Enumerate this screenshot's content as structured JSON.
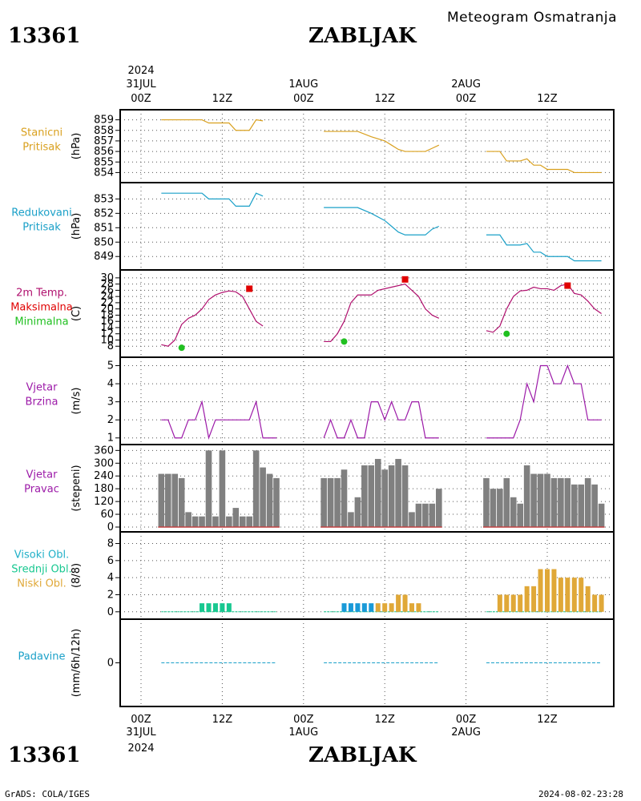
{
  "station_id": "13361",
  "station_name": "ZABLJAK",
  "meteogram_title": "Meteogram Osmatranja",
  "year": "2024",
  "footer_left": "GrADS: COLA/IGES",
  "footer_right": "2024-08-02-23:28",
  "time_axis": {
    "days": [
      "31JUL",
      "1AUG",
      "2AUG"
    ],
    "hour_labels": [
      "00Z",
      "12Z",
      "00Z",
      "12Z",
      "00Z",
      "12Z"
    ]
  },
  "colors": {
    "pressure": "#d9a01e",
    "reduced": "#1aa0c8",
    "temp": "#b0106e",
    "tmax": "#e00000",
    "tmin": "#20c020",
    "wind": "#9c1aa8",
    "dir_bar": "#808080",
    "cloud_high": "#20b0c8",
    "cloud_mid": "#18c890",
    "cloud_low": "#e0a838",
    "precip": "#1aa0c8"
  },
  "chart_data": [
    {
      "type": "line",
      "key": "station_pressure",
      "labels": [
        "Stanicni",
        "Pritisak"
      ],
      "ylabel": "(hPa)",
      "ylim": [
        853.5,
        859.5
      ],
      "yticks": [
        854,
        855,
        856,
        857,
        858,
        859
      ],
      "series": [
        {
          "values": [
            [
              3,
              859
            ],
            [
              9,
              859
            ],
            [
              10,
              858.7
            ],
            [
              13,
              858.7
            ],
            [
              14,
              858
            ],
            [
              16,
              858
            ],
            [
              17,
              859
            ],
            [
              18,
              858.9
            ]
          ]
        },
        {
          "values": [
            [
              27,
              857.9
            ],
            [
              32,
              857.9
            ],
            [
              34,
              857.4
            ],
            [
              36,
              857
            ],
            [
              37,
              856.6
            ],
            [
              38,
              856.2
            ],
            [
              39,
              856
            ],
            [
              42,
              856
            ],
            [
              43,
              856.3
            ],
            [
              44,
              856.6
            ]
          ]
        },
        {
          "values": [
            [
              51,
              856
            ],
            [
              53,
              856
            ],
            [
              54,
              855.1
            ],
            [
              56,
              855.1
            ],
            [
              57,
              855.3
            ],
            [
              58,
              854.7
            ],
            [
              59,
              854.7
            ],
            [
              60,
              854.3
            ],
            [
              63,
              854.3
            ],
            [
              64,
              854
            ],
            [
              68,
              854
            ]
          ]
        }
      ]
    },
    {
      "type": "line",
      "key": "reduced_pressure",
      "labels": [
        "Redukovani",
        "Pritisak"
      ],
      "ylabel": "(hPa)",
      "ylim": [
        848.4,
        853.8
      ],
      "yticks": [
        849,
        850,
        851,
        852,
        853
      ],
      "series": [
        {
          "values": [
            [
              3,
              853.4
            ],
            [
              9,
              853.4
            ],
            [
              10,
              853
            ],
            [
              13,
              853
            ],
            [
              14,
              852.5
            ],
            [
              16,
              852.5
            ],
            [
              17,
              853.4
            ],
            [
              18,
              853.2
            ]
          ]
        },
        {
          "values": [
            [
              27,
              852.4
            ],
            [
              32,
              852.4
            ],
            [
              34,
              852
            ],
            [
              36,
              851.5
            ],
            [
              37,
              851.1
            ],
            [
              38,
              850.7
            ],
            [
              39,
              850.5
            ],
            [
              42,
              850.5
            ],
            [
              43,
              850.9
            ],
            [
              44,
              851.1
            ]
          ]
        },
        {
          "values": [
            [
              51,
              850.5
            ],
            [
              53,
              850.5
            ],
            [
              54,
              849.8
            ],
            [
              56,
              849.8
            ],
            [
              57,
              849.9
            ],
            [
              58,
              849.3
            ],
            [
              59,
              849.3
            ],
            [
              60,
              849
            ],
            [
              63,
              849
            ],
            [
              64,
              848.7
            ],
            [
              68,
              848.7
            ]
          ]
        }
      ]
    },
    {
      "type": "line",
      "key": "temperature",
      "labels": [
        "2m Temp.",
        "Maksimalna",
        "Minimalna"
      ],
      "ylabel": "(C)",
      "ylim": [
        6,
        31
      ],
      "yticks": [
        8,
        10,
        12,
        14,
        16,
        18,
        20,
        22,
        24,
        26,
        28,
        30
      ],
      "series": [
        {
          "name": "2m Temp.",
          "values": [
            [
              3,
              8.5
            ],
            [
              4,
              8
            ],
            [
              5,
              10
            ],
            [
              6,
              15
            ],
            [
              7,
              17
            ],
            [
              8,
              18
            ],
            [
              9,
              20
            ],
            [
              10,
              23
            ],
            [
              11,
              24.5
            ],
            [
              12,
              25.3
            ],
            [
              13,
              25.8
            ],
            [
              14,
              25.5
            ],
            [
              15,
              24
            ],
            [
              16,
              20
            ],
            [
              17,
              16
            ],
            [
              18,
              14.5
            ]
          ]
        },
        {
          "name": "2m Temp.",
          "values": [
            [
              27,
              9.5
            ],
            [
              28,
              9.5
            ],
            [
              29,
              12
            ],
            [
              30,
              16
            ],
            [
              31,
              22
            ],
            [
              32,
              24.5
            ],
            [
              34,
              24.5
            ],
            [
              35,
              26
            ],
            [
              37,
              27
            ],
            [
              39,
              28
            ],
            [
              40,
              26
            ],
            [
              41,
              24
            ],
            [
              42,
              20
            ],
            [
              43,
              18
            ],
            [
              44,
              17
            ]
          ]
        },
        {
          "name": "2m Temp.",
          "values": [
            [
              51,
              13
            ],
            [
              52,
              12.5
            ],
            [
              53,
              14.5
            ],
            [
              54,
              20
            ],
            [
              55,
              24
            ],
            [
              56,
              25.8
            ],
            [
              57,
              26
            ],
            [
              58,
              27
            ],
            [
              59,
              26.5
            ],
            [
              60,
              26.5
            ],
            [
              61,
              26
            ],
            [
              62,
              27.5
            ],
            [
              63,
              28
            ],
            [
              64,
              25
            ],
            [
              65,
              24.5
            ],
            [
              66,
              22.5
            ],
            [
              67,
              20
            ],
            [
              68,
              18.5
            ]
          ]
        }
      ],
      "max_points": [
        [
          16,
          26.5
        ],
        [
          39,
          29.5
        ],
        [
          63,
          27.5
        ]
      ],
      "min_points": [
        [
          6,
          7.5
        ],
        [
          30,
          9.5
        ],
        [
          54,
          12
        ]
      ]
    },
    {
      "type": "line",
      "key": "wind_speed",
      "labels": [
        "Vjetar",
        "Brzina"
      ],
      "ylabel": "(m/s)",
      "ylim": [
        0.9,
        5.2
      ],
      "yticks": [
        1,
        2,
        3,
        4,
        5
      ],
      "series": [
        {
          "values": [
            [
              3,
              2
            ],
            [
              4,
              2
            ],
            [
              5,
              1
            ],
            [
              6,
              1
            ],
            [
              7,
              2
            ],
            [
              8,
              2
            ],
            [
              9,
              3
            ],
            [
              10,
              1
            ],
            [
              11,
              2
            ],
            [
              16,
              2
            ],
            [
              17,
              3
            ],
            [
              18,
              1
            ],
            [
              20,
              1
            ]
          ]
        },
        {
          "values": [
            [
              27,
              1
            ],
            [
              28,
              2
            ],
            [
              29,
              1
            ],
            [
              30,
              1
            ],
            [
              31,
              2
            ],
            [
              32,
              1
            ],
            [
              33,
              1
            ],
            [
              34,
              3
            ],
            [
              35,
              3
            ],
            [
              36,
              2
            ],
            [
              37,
              3
            ],
            [
              38,
              2
            ],
            [
              39,
              2
            ],
            [
              40,
              3
            ],
            [
              41,
              3
            ],
            [
              42,
              1
            ],
            [
              44,
              1
            ]
          ]
        },
        {
          "values": [
            [
              51,
              1
            ],
            [
              55,
              1
            ],
            [
              56,
              2
            ],
            [
              57,
              4
            ],
            [
              58,
              3
            ],
            [
              59,
              5
            ],
            [
              60,
              5
            ],
            [
              61,
              4
            ],
            [
              62,
              4
            ],
            [
              63,
              5
            ],
            [
              64,
              4
            ],
            [
              65,
              4
            ],
            [
              66,
              2
            ],
            [
              68,
              2
            ]
          ]
        }
      ]
    },
    {
      "type": "bar",
      "key": "wind_direction",
      "labels": [
        "Vjetar",
        "Pravac"
      ],
      "ylabel": "(stepeni)",
      "ylim": [
        0,
        365
      ],
      "yticks": [
        0,
        60,
        120,
        180,
        240,
        300,
        360
      ],
      "values": [
        [
          3,
          250
        ],
        [
          4,
          250
        ],
        [
          5,
          250
        ],
        [
          6,
          230
        ],
        [
          7,
          70
        ],
        [
          8,
          50
        ],
        [
          9,
          50
        ],
        [
          10,
          360
        ],
        [
          11,
          50
        ],
        [
          12,
          360
        ],
        [
          13,
          50
        ],
        [
          14,
          90
        ],
        [
          15,
          50
        ],
        [
          16,
          50
        ],
        [
          17,
          360
        ],
        [
          18,
          280
        ],
        [
          19,
          250
        ],
        [
          20,
          230
        ],
        [
          27,
          230
        ],
        [
          28,
          230
        ],
        [
          29,
          230
        ],
        [
          30,
          270
        ],
        [
          31,
          70
        ],
        [
          32,
          140
        ],
        [
          33,
          290
        ],
        [
          34,
          290
        ],
        [
          35,
          320
        ],
        [
          36,
          270
        ],
        [
          37,
          290
        ],
        [
          38,
          320
        ],
        [
          39,
          290
        ],
        [
          40,
          70
        ],
        [
          41,
          110
        ],
        [
          42,
          110
        ],
        [
          43,
          110
        ],
        [
          44,
          180
        ],
        [
          51,
          230
        ],
        [
          52,
          180
        ],
        [
          53,
          180
        ],
        [
          54,
          230
        ],
        [
          55,
          140
        ],
        [
          56,
          110
        ],
        [
          57,
          290
        ],
        [
          58,
          250
        ],
        [
          59,
          250
        ],
        [
          60,
          250
        ],
        [
          61,
          230
        ],
        [
          62,
          230
        ],
        [
          63,
          230
        ],
        [
          64,
          200
        ],
        [
          65,
          200
        ],
        [
          66,
          230
        ],
        [
          67,
          200
        ],
        [
          68,
          110
        ]
      ]
    },
    {
      "type": "bar",
      "key": "clouds",
      "labels": [
        "Visoki Obl.",
        "Srednji Obl.",
        "Niski Obl."
      ],
      "ylabel": "(8/8)",
      "ylim": [
        -0.3,
        8.8
      ],
      "yticks": [
        0,
        2,
        4,
        6,
        8
      ],
      "high": [
        [
          30,
          1
        ],
        [
          31,
          1
        ],
        [
          32,
          1
        ],
        [
          33,
          1
        ],
        [
          34,
          1
        ]
      ],
      "mid": [
        [
          9,
          1
        ],
        [
          10,
          1
        ],
        [
          11,
          1
        ],
        [
          12,
          1
        ],
        [
          13,
          1
        ]
      ],
      "low": [
        [
          35,
          1
        ],
        [
          36,
          1
        ],
        [
          37,
          1
        ],
        [
          38,
          2
        ],
        [
          39,
          2
        ],
        [
          40,
          1
        ],
        [
          41,
          1
        ],
        [
          53,
          2
        ],
        [
          54,
          2
        ],
        [
          55,
          2
        ],
        [
          56,
          2
        ],
        [
          57,
          3
        ],
        [
          58,
          3
        ],
        [
          59,
          5
        ],
        [
          60,
          5
        ],
        [
          61,
          5
        ],
        [
          62,
          4
        ],
        [
          63,
          4
        ],
        [
          64,
          4
        ],
        [
          65,
          4
        ],
        [
          66,
          3
        ],
        [
          67,
          2
        ],
        [
          68,
          2
        ]
      ]
    },
    {
      "type": "line",
      "key": "precipitation",
      "labels": [
        "Padavine"
      ],
      "ylabel": "(mm/6h/12h)",
      "ylim": [
        -0.6,
        0.6
      ],
      "yticks": [
        0
      ],
      "series": [
        {
          "values": [
            [
              3,
              0
            ],
            [
              20,
              0
            ]
          ]
        },
        {
          "values": [
            [
              27,
              0
            ],
            [
              44,
              0
            ]
          ]
        },
        {
          "values": [
            [
              51,
              0
            ],
            [
              68,
              0
            ]
          ]
        }
      ]
    }
  ]
}
